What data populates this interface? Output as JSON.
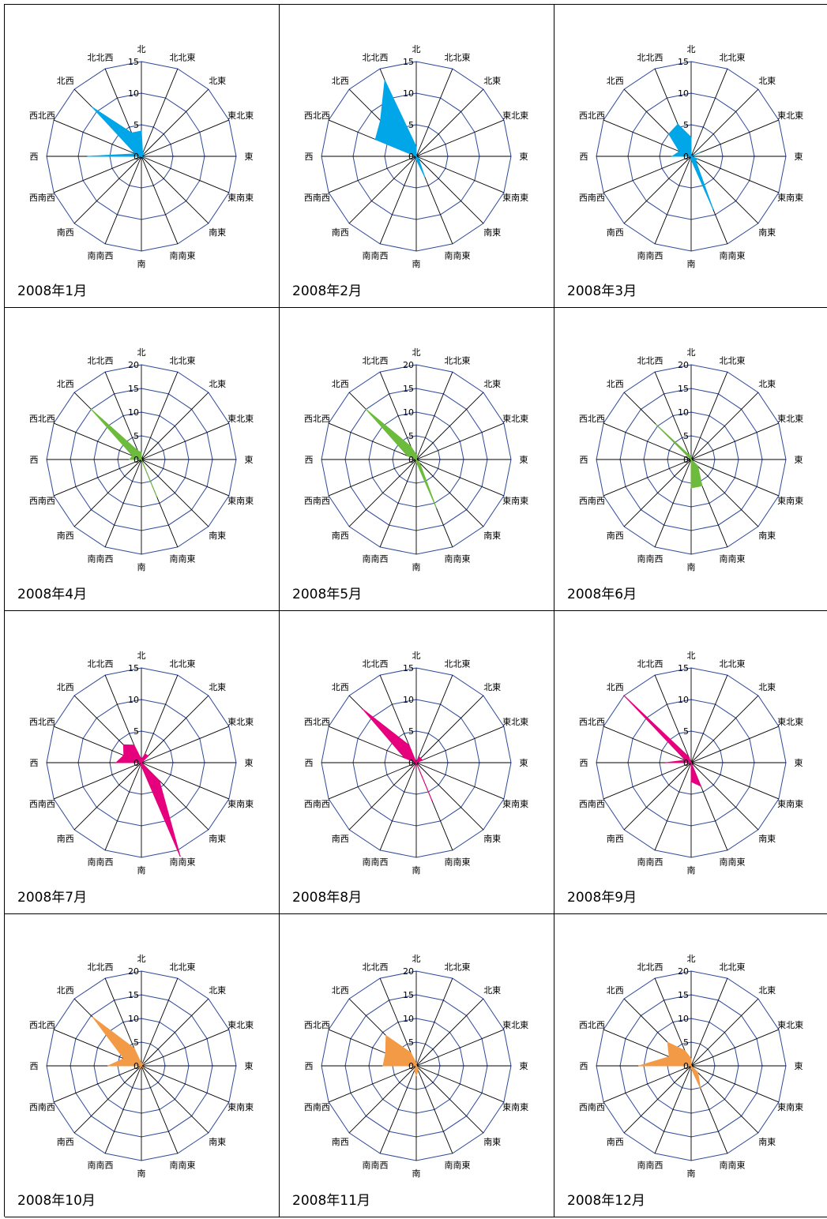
{
  "directions": [
    "北",
    "北北東",
    "北東",
    "東北東",
    "東",
    "東南東",
    "南東",
    "南南東",
    "南",
    "南南西",
    "南西",
    "西南西",
    "西",
    "西北西",
    "北西",
    "北北西"
  ],
  "colors": {
    "winter": "#00a6e8",
    "spring": "#6cbb3c",
    "summer": "#e6007e",
    "autumn": "#f39a47",
    "grid_ring": "#2e4a9a",
    "spoke": "#000000"
  },
  "chart_data": [
    {
      "type": "radar",
      "title": "2008年1月",
      "max": 15,
      "ticks": [
        0,
        5,
        10,
        15
      ],
      "color": "#00a6e8",
      "values": [
        4,
        0.5,
        0.5,
        0,
        0,
        0.5,
        0,
        0,
        0,
        0,
        0,
        0,
        8.5,
        1,
        11,
        4
      ]
    },
    {
      "type": "radar",
      "title": "2008年2月",
      "max": 15,
      "ticks": [
        0,
        5,
        10,
        15
      ],
      "color": "#00a6e8",
      "values": [
        1.5,
        0,
        0,
        0,
        0,
        0,
        0.5,
        3.5,
        0.5,
        0,
        0,
        0,
        0,
        7,
        8,
        13
      ]
    },
    {
      "type": "radar",
      "title": "2008年3月",
      "max": 15,
      "ticks": [
        0,
        5,
        10,
        15
      ],
      "color": "#00a6e8",
      "values": [
        3,
        0,
        0,
        1.5,
        0,
        1,
        1,
        9,
        0.5,
        0,
        0,
        0,
        3,
        2,
        5,
        5.5
      ]
    },
    {
      "type": "radar",
      "title": "2008年4月",
      "max": 20,
      "ticks": [
        0,
        5,
        10,
        15,
        20
      ],
      "color": "#6cbb3c",
      "values": [
        1.5,
        0,
        0,
        0,
        0,
        0,
        0,
        8.5,
        0,
        0,
        0,
        0,
        2.5,
        2,
        15,
        2
      ]
    },
    {
      "type": "radar",
      "title": "2008年5月",
      "max": 20,
      "ticks": [
        0,
        5,
        10,
        15,
        20
      ],
      "color": "#6cbb3c",
      "values": [
        1,
        0.5,
        0,
        0,
        0,
        0,
        1,
        11,
        0.5,
        0,
        0,
        0,
        0,
        2,
        15,
        3
      ]
    },
    {
      "type": "radar",
      "title": "2008年6月",
      "max": 20,
      "ticks": [
        0,
        5,
        10,
        15,
        20
      ],
      "color": "#6cbb3c",
      "values": [
        0.5,
        0,
        0,
        0,
        0,
        0,
        2,
        6,
        6,
        0,
        0,
        0,
        0,
        0,
        10.5,
        1
      ]
    },
    {
      "type": "radar",
      "title": "2008年7月",
      "max": 15,
      "ticks": [
        0,
        5,
        10,
        15
      ],
      "color": "#e6007e",
      "values": [
        0.5,
        1.5,
        1.5,
        0,
        0,
        0,
        4,
        16,
        0.5,
        0.5,
        0,
        0,
        4,
        3,
        4,
        3
      ]
    },
    {
      "type": "radar",
      "title": "2008年8月",
      "max": 15,
      "ticks": [
        0,
        5,
        10,
        15
      ],
      "color": "#e6007e",
      "values": [
        0,
        1,
        1,
        1,
        0,
        0,
        0,
        6.5,
        0,
        1,
        0,
        0,
        0,
        2,
        12,
        3
      ]
    },
    {
      "type": "radar",
      "title": "2008年9月",
      "max": 15,
      "ticks": [
        0,
        5,
        10,
        15
      ],
      "color": "#e6007e",
      "values": [
        0,
        0,
        0,
        0,
        0,
        0,
        0,
        4,
        3,
        0,
        0,
        0,
        4,
        1,
        15,
        1
      ]
    },
    {
      "type": "radar",
      "title": "2008年10月",
      "max": 20,
      "ticks": [
        0,
        5,
        10,
        15,
        20
      ],
      "color": "#f39a47",
      "values": [
        0.5,
        0.5,
        0.5,
        0,
        0,
        0,
        0.5,
        0,
        0,
        0.5,
        0.5,
        0,
        7,
        4,
        14.5,
        4
      ]
    },
    {
      "type": "radar",
      "title": "2008年11月",
      "max": 20,
      "ticks": [
        0,
        5,
        10,
        15,
        20
      ],
      "color": "#f39a47",
      "values": [
        0.5,
        0,
        0,
        0,
        0,
        0,
        0.5,
        1,
        2,
        1,
        0,
        0,
        7,
        7,
        9,
        3
      ]
    },
    {
      "type": "radar",
      "title": "2008年12月",
      "max": 20,
      "ticks": [
        0,
        5,
        10,
        15,
        20
      ],
      "color": "#f39a47",
      "values": [
        1.5,
        0,
        0,
        0,
        0,
        0,
        2,
        5,
        0.5,
        0,
        0,
        0,
        11,
        5,
        7,
        3.5
      ]
    }
  ]
}
